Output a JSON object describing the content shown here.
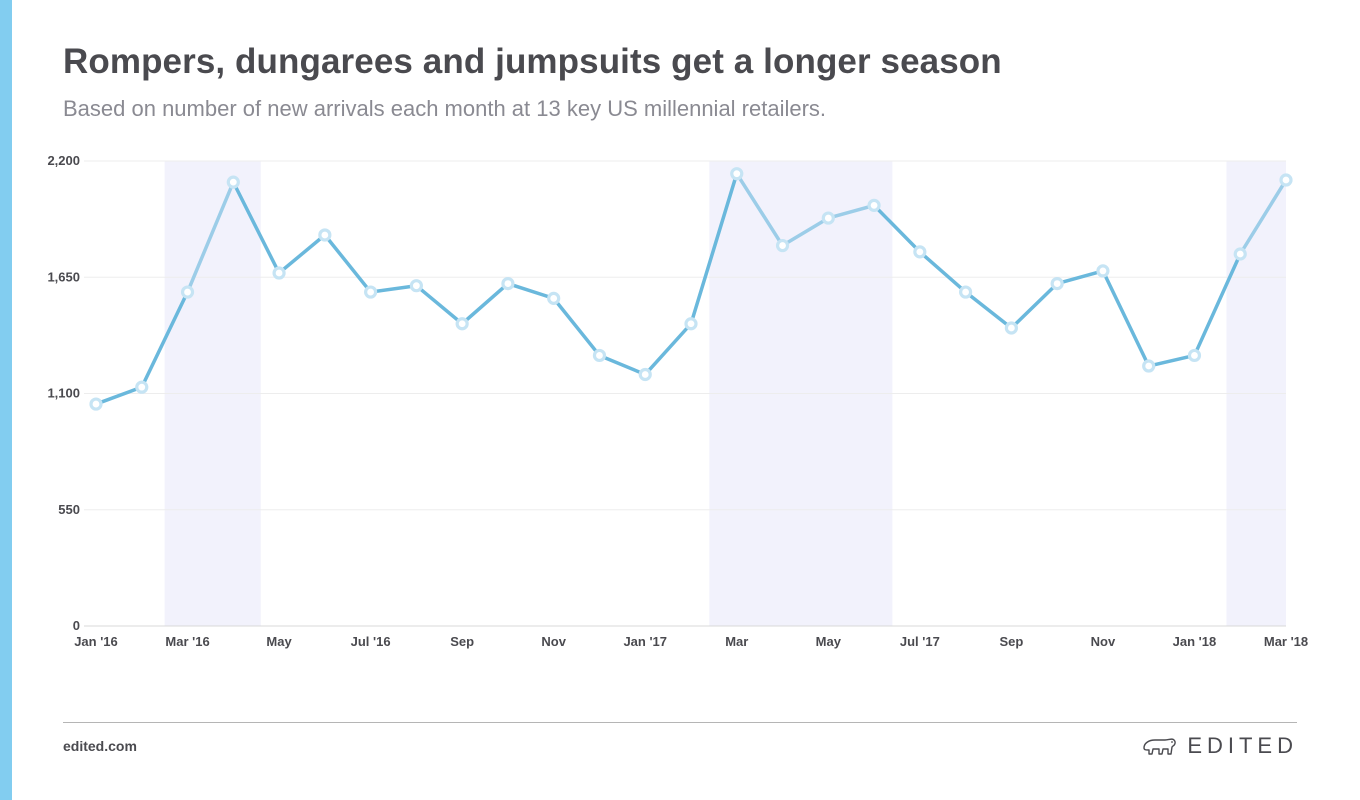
{
  "header": {
    "title": "Rompers, dungarees and jumpsuits get a longer season",
    "subtitle": "Based on number of new arrivals each month at 13 key US millennial retailers."
  },
  "footer": {
    "site": "edited.com",
    "brand": "EDITED",
    "brand_icon": "polar-bear-icon"
  },
  "colors": {
    "accent_bar": "#82cdf0",
    "line": "#6ab8dc",
    "line_highlight": "#9ccde8",
    "shade": "#f2f2fc",
    "grid": "#ededed"
  },
  "chart_data": {
    "type": "line",
    "x": [
      "Jan '16",
      "Feb '16",
      "Mar '16",
      "Apr '16",
      "May '16",
      "Jun '16",
      "Jul '16",
      "Aug '16",
      "Sep '16",
      "Oct '16",
      "Nov '16",
      "Dec '16",
      "Jan '17",
      "Feb '17",
      "Mar '17",
      "Apr '17",
      "May '17",
      "Jun '17",
      "Jul '17",
      "Aug '17",
      "Sep '17",
      "Oct '17",
      "Nov '17",
      "Dec '17",
      "Jan '18",
      "Feb '18",
      "Mar '18"
    ],
    "series": [
      {
        "values": [
          1050,
          1130,
          1580,
          2100,
          1670,
          1850,
          1580,
          1610,
          1430,
          1620,
          1550,
          1280,
          1190,
          1430,
          2140,
          1800,
          1930,
          1990,
          1770,
          1580,
          1410,
          1620,
          1680,
          1230,
          1280,
          1760,
          2110
        ]
      }
    ],
    "xtick_labels": [
      "Jan '16",
      "Mar '16",
      "May",
      "Jul '16",
      "Sep",
      "Nov",
      "Jan '17",
      "Mar",
      "May",
      "Jul '17",
      "Sep",
      "Nov",
      "Jan '18",
      "Mar '18"
    ],
    "xtick_indices": [
      0,
      2,
      4,
      6,
      8,
      10,
      12,
      14,
      16,
      18,
      20,
      22,
      24,
      26
    ],
    "yticks": [
      0,
      550,
      1100,
      1650,
      2200
    ],
    "ytick_labels": [
      "0",
      "550",
      "1,100",
      "1,650",
      "2,200"
    ],
    "ylim": [
      0,
      2200
    ],
    "shaded_ranges": [
      [
        1.5,
        3.6
      ],
      [
        13.4,
        17.4
      ],
      [
        24.7,
        26
      ]
    ],
    "grid": true,
    "xlabel": "",
    "ylabel": ""
  }
}
